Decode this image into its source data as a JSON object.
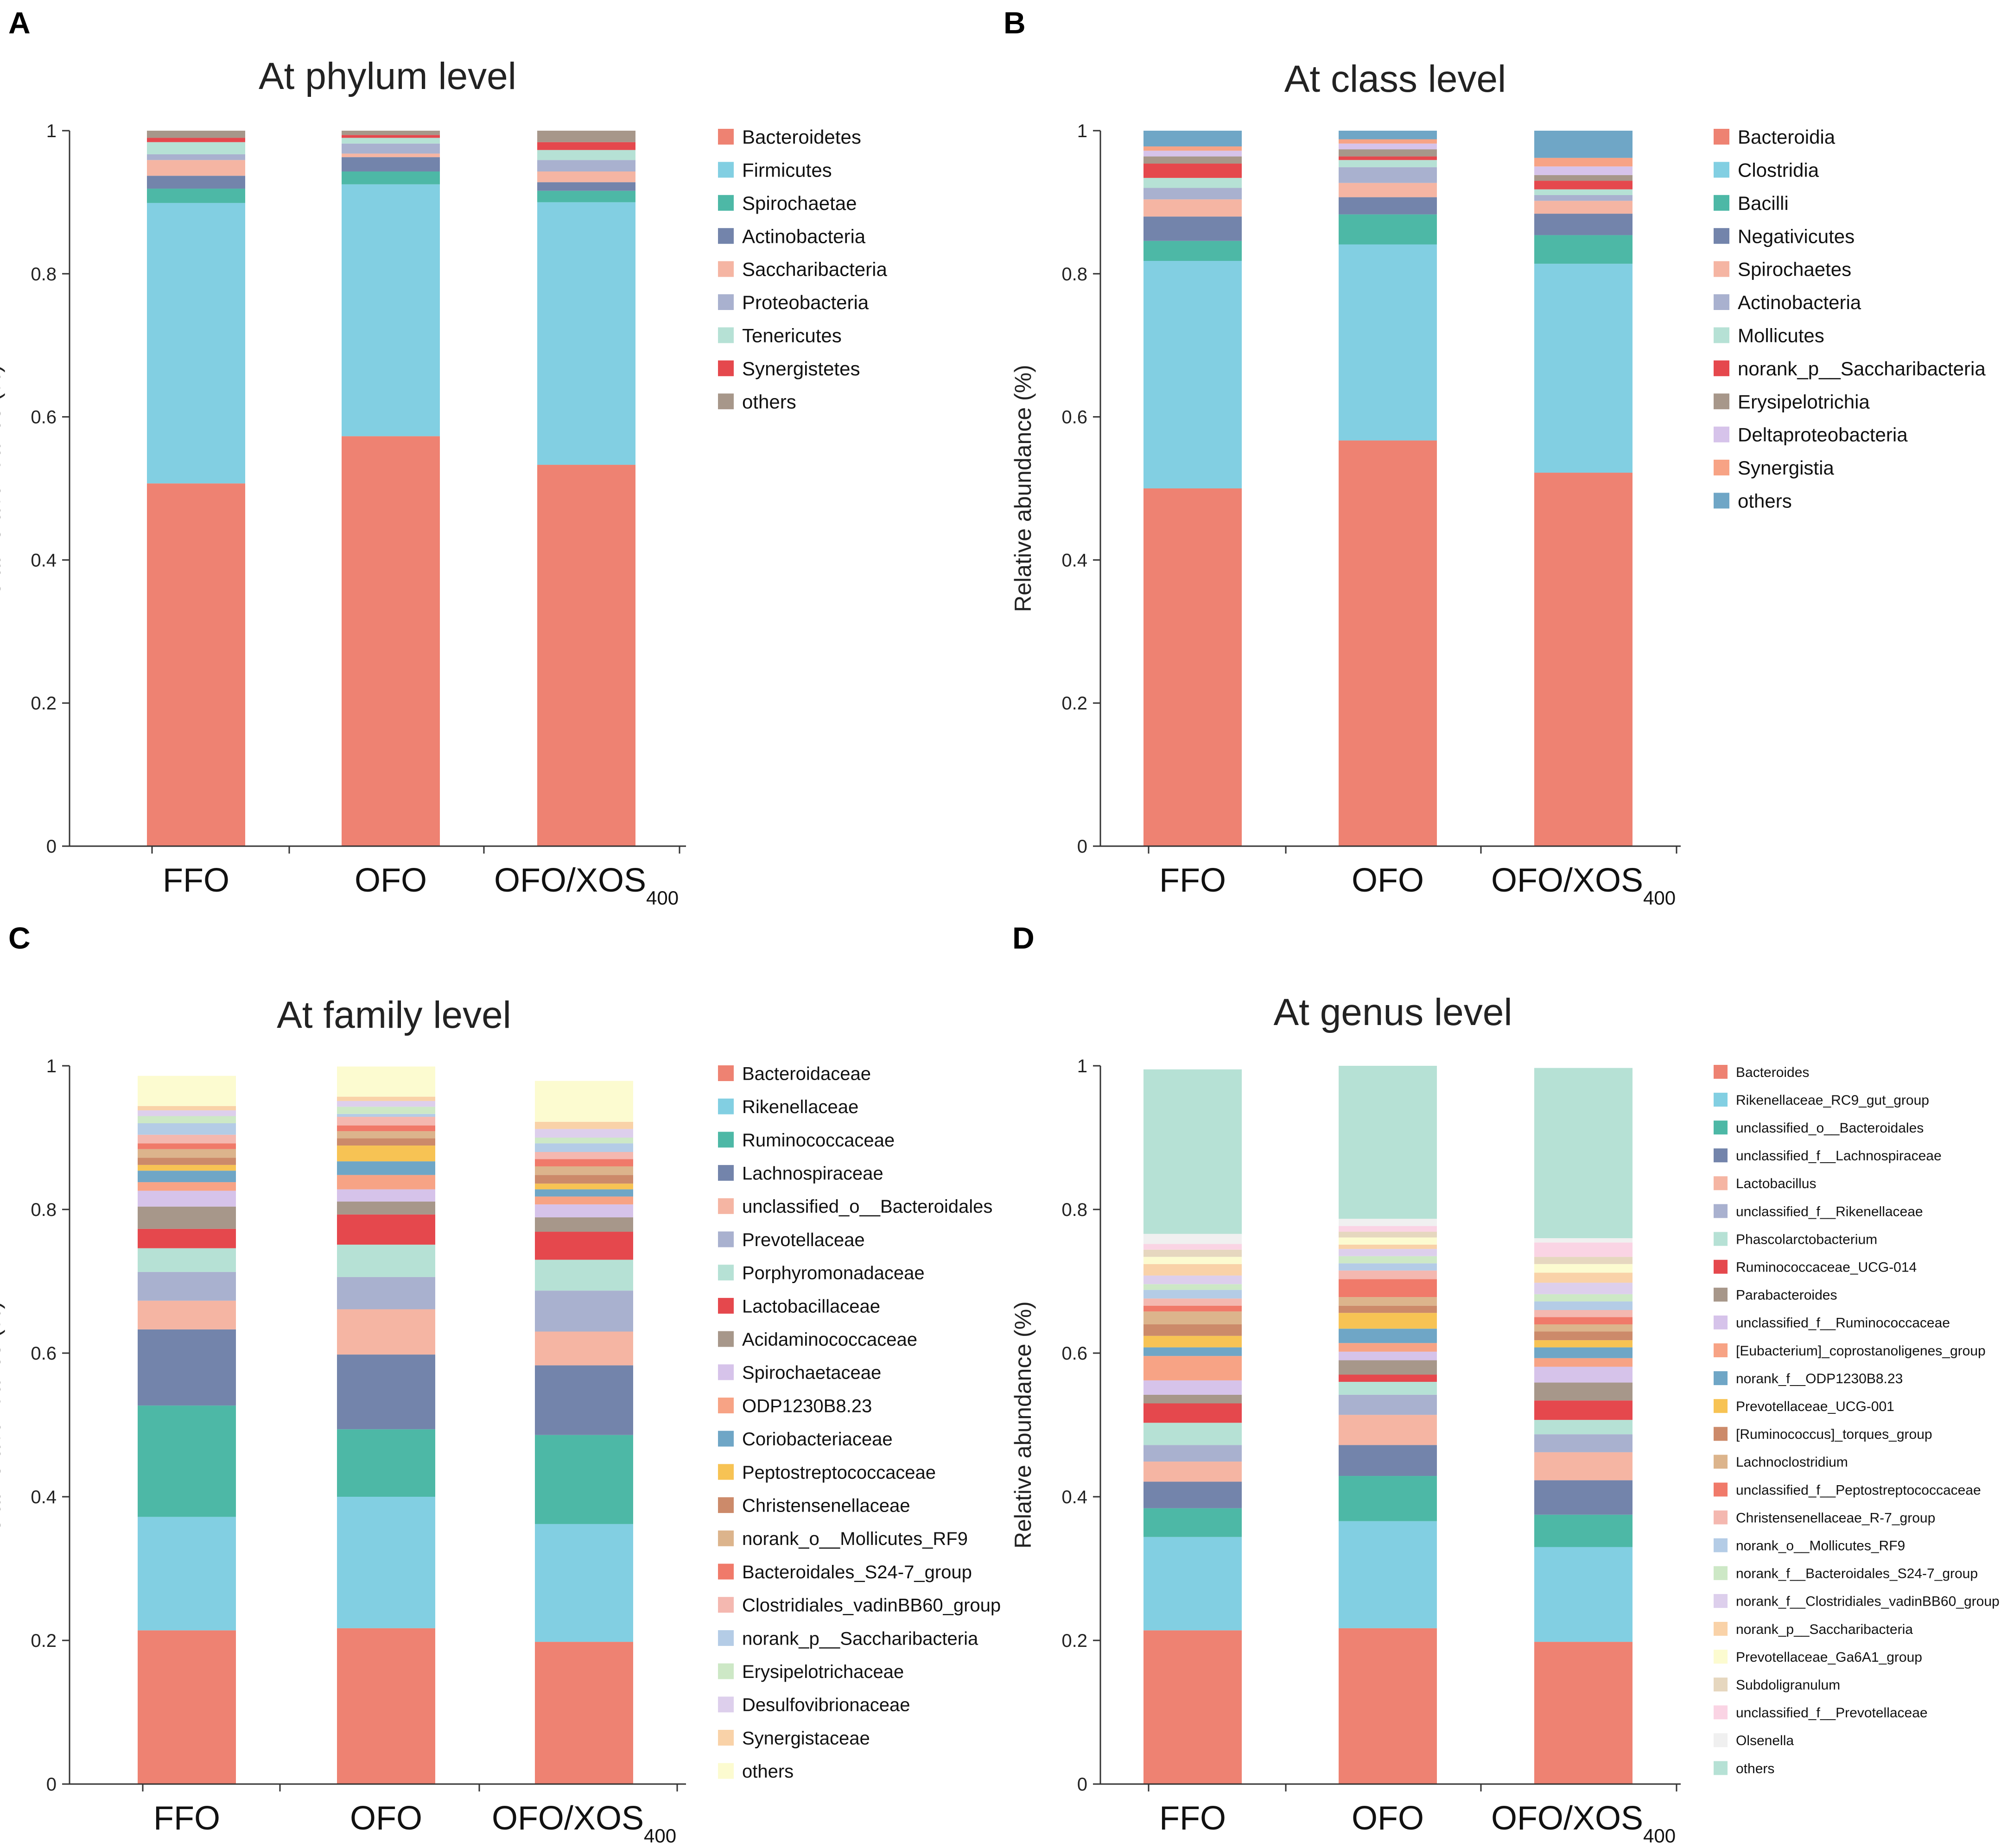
{
  "figure": {
    "panel_letters": [
      "A",
      "B",
      "C",
      "D"
    ]
  },
  "chart_data": [
    {
      "panel": "A",
      "type": "bar",
      "stacked": true,
      "title": "At phylum level",
      "ylabel": "Relative abundance (%)",
      "xlabel": "",
      "ylim": [
        0,
        1
      ],
      "yticks": [
        "0",
        "0.2",
        "0.4",
        "0.6",
        "0.8",
        "1"
      ],
      "categories": [
        {
          "main": "FFO",
          "sub": ""
        },
        {
          "main": "OFO",
          "sub": ""
        },
        {
          "main": "OFO/XOS",
          "sub": "400"
        }
      ],
      "legend_position": "right",
      "series": [
        {
          "name": "Bacteroidetes",
          "color": "#ee8272",
          "values": [
            0.507,
            0.573,
            0.533
          ]
        },
        {
          "name": "Firmicutes",
          "color": "#82cfe2",
          "values": [
            0.392,
            0.352,
            0.367
          ]
        },
        {
          "name": "Spirochaetae",
          "color": "#4db8a6",
          "values": [
            0.02,
            0.018,
            0.016
          ]
        },
        {
          "name": "Actinobacteria",
          "color": "#7384ab",
          "values": [
            0.018,
            0.02,
            0.012
          ]
        },
        {
          "name": "Saccharibacteria",
          "color": "#f5b5a3",
          "values": [
            0.022,
            0.005,
            0.015
          ]
        },
        {
          "name": "Proteobacteria",
          "color": "#a9b1cf",
          "values": [
            0.008,
            0.014,
            0.016
          ]
        },
        {
          "name": "Tenericutes",
          "color": "#b6e1d5",
          "values": [
            0.017,
            0.008,
            0.014
          ]
        },
        {
          "name": "Synergistetes",
          "color": "#e5484d",
          "values": [
            0.006,
            0.004,
            0.011
          ]
        },
        {
          "name": "others",
          "color": "#a7978a",
          "values": [
            0.01,
            0.006,
            0.016
          ]
        }
      ]
    },
    {
      "panel": "B",
      "type": "bar",
      "stacked": true,
      "title": "At class level",
      "ylabel": "Relative abundance (%)",
      "xlabel": "",
      "ylim": [
        0,
        1
      ],
      "yticks": [
        "0",
        "0.2",
        "0.4",
        "0.6",
        "0.8",
        "1"
      ],
      "categories": [
        {
          "main": "FFO",
          "sub": ""
        },
        {
          "main": "OFO",
          "sub": ""
        },
        {
          "main": "OFO/XOS",
          "sub": "400"
        }
      ],
      "legend_position": "right",
      "series": [
        {
          "name": "Bacteroidia",
          "color": "#ee8272",
          "values": [
            0.5,
            0.567,
            0.522
          ]
        },
        {
          "name": "Clostridia",
          "color": "#82cfe2",
          "values": [
            0.318,
            0.274,
            0.292
          ]
        },
        {
          "name": "Bacilli",
          "color": "#4db8a6",
          "values": [
            0.028,
            0.042,
            0.04
          ]
        },
        {
          "name": "Negativicutes",
          "color": "#7384ab",
          "values": [
            0.034,
            0.024,
            0.03
          ]
        },
        {
          "name": "Spirochaetes",
          "color": "#f5b5a3",
          "values": [
            0.024,
            0.02,
            0.018
          ]
        },
        {
          "name": "Actinobacteria",
          "color": "#a9b1cf",
          "values": [
            0.016,
            0.022,
            0.008
          ]
        },
        {
          "name": "Mollicutes",
          "color": "#b6e1d5",
          "values": [
            0.014,
            0.01,
            0.008
          ]
        },
        {
          "name": "norank_p__Saccharibacteria",
          "color": "#e5484d",
          "values": [
            0.02,
            0.005,
            0.012
          ]
        },
        {
          "name": "Erysipelotrichia",
          "color": "#a7978a",
          "values": [
            0.01,
            0.01,
            0.008
          ]
        },
        {
          "name": "Deltaproteobacteria",
          "color": "#d6c3ea",
          "values": [
            0.008,
            0.008,
            0.012
          ]
        },
        {
          "name": "Synergistia",
          "color": "#f7a385",
          "values": [
            0.006,
            0.006,
            0.012
          ]
        },
        {
          "name": "others",
          "color": "#6fa6c6",
          "values": [
            0.022,
            0.012,
            0.038
          ]
        }
      ]
    },
    {
      "panel": "C",
      "type": "bar",
      "stacked": true,
      "title": "At family level",
      "ylabel": "Relative abundance (%)",
      "xlabel": "",
      "ylim": [
        0,
        1
      ],
      "yticks": [
        "0",
        "0.2",
        "0.4",
        "0.6",
        "0.8",
        "1"
      ],
      "categories": [
        {
          "main": "FFO",
          "sub": ""
        },
        {
          "main": "OFO",
          "sub": ""
        },
        {
          "main": "OFO/XOS",
          "sub": "400"
        }
      ],
      "legend_position": "right",
      "series": [
        {
          "name": "Bacteroidaceae",
          "color": "#ee8272",
          "values": [
            0.214,
            0.217,
            0.198
          ]
        },
        {
          "name": "Rikenellaceae",
          "color": "#82cfe2",
          "values": [
            0.158,
            0.183,
            0.164
          ]
        },
        {
          "name": "Ruminococcaceae",
          "color": "#4db8a6",
          "values": [
            0.155,
            0.094,
            0.124
          ]
        },
        {
          "name": "Lachnospiraceae",
          "color": "#7384ab",
          "values": [
            0.106,
            0.104,
            0.097
          ]
        },
        {
          "name": "unclassified_o__Bacteroidales",
          "color": "#f5b5a3",
          "values": [
            0.04,
            0.063,
            0.047
          ]
        },
        {
          "name": "Prevotellaceae",
          "color": "#a9b1cf",
          "values": [
            0.04,
            0.045,
            0.057
          ]
        },
        {
          "name": "Porphyromonadaceae",
          "color": "#b6e1d5",
          "values": [
            0.033,
            0.045,
            0.043
          ]
        },
        {
          "name": "Lactobacillaceae",
          "color": "#e5484d",
          "values": [
            0.027,
            0.042,
            0.039
          ]
        },
        {
          "name": "Acidaminococcaceae",
          "color": "#a7978a",
          "values": [
            0.031,
            0.018,
            0.02
          ]
        },
        {
          "name": "Spirochaetaceae",
          "color": "#d6c3ea",
          "values": [
            0.022,
            0.017,
            0.018
          ]
        },
        {
          "name": "ODP1230B8.23",
          "color": "#f7a385",
          "values": [
            0.012,
            0.02,
            0.011
          ]
        },
        {
          "name": "Coriobacteriaceae",
          "color": "#6fa6c6",
          "values": [
            0.016,
            0.019,
            0.01
          ]
        },
        {
          "name": "Peptostreptococcaceae",
          "color": "#f7c354",
          "values": [
            0.008,
            0.022,
            0.008
          ]
        },
        {
          "name": "Christensenellaceae",
          "color": "#cc8a6a",
          "values": [
            0.01,
            0.01,
            0.012
          ]
        },
        {
          "name": "norank_o__Mollicutes_RF9",
          "color": "#dcb48c",
          "values": [
            0.012,
            0.01,
            0.012
          ]
        },
        {
          "name": "Bacteroidales_S24-7_group",
          "color": "#f07a6a",
          "values": [
            0.008,
            0.008,
            0.01
          ]
        },
        {
          "name": "Clostridiales_vadinBB60_group",
          "color": "#f4b8b0",
          "values": [
            0.012,
            0.012,
            0.01
          ]
        },
        {
          "name": "norank_p__Saccharibacteria",
          "color": "#b4cce6",
          "values": [
            0.016,
            0.004,
            0.012
          ]
        },
        {
          "name": "Erysipelotrichaceae",
          "color": "#cde8c6",
          "values": [
            0.01,
            0.01,
            0.008
          ]
        },
        {
          "name": "Desulfovibrionaceae",
          "color": "#ddcfec",
          "values": [
            0.008,
            0.008,
            0.012
          ]
        },
        {
          "name": "Synergistaceae",
          "color": "#f9d2a8",
          "values": [
            0.006,
            0.006,
            0.01
          ]
        },
        {
          "name": "others",
          "color": "#fcfbd0",
          "values": [
            0.042,
            0.042,
            0.057
          ]
        }
      ]
    },
    {
      "panel": "D",
      "type": "bar",
      "stacked": true,
      "title": "At genus level",
      "ylabel": "Relative abundance (%)",
      "xlabel": "",
      "ylim": [
        0,
        1
      ],
      "yticks": [
        "0",
        "0.2",
        "0.4",
        "0.6",
        "0.8",
        "1"
      ],
      "categories": [
        {
          "main": "FFO",
          "sub": ""
        },
        {
          "main": "OFO",
          "sub": ""
        },
        {
          "main": "OFO/XOS",
          "sub": "400"
        }
      ],
      "legend_position": "right",
      "series": [
        {
          "name": "Bacteroides",
          "color": "#ee8272",
          "values": [
            0.214,
            0.217,
            0.198
          ]
        },
        {
          "name": "Rikenellaceae_RC9_gut_group",
          "color": "#82cfe2",
          "values": [
            0.13,
            0.149,
            0.132
          ]
        },
        {
          "name": "unclassified_o__Bacteroidales",
          "color": "#4db8a6",
          "values": [
            0.04,
            0.063,
            0.045
          ]
        },
        {
          "name": "unclassified_f__Lachnospiraceae",
          "color": "#7384ab",
          "values": [
            0.037,
            0.043,
            0.048
          ]
        },
        {
          "name": "Lactobacillus",
          "color": "#f5b5a3",
          "values": [
            0.028,
            0.042,
            0.039
          ]
        },
        {
          "name": "unclassified_f__Rikenellaceae",
          "color": "#a9b1cf",
          "values": [
            0.023,
            0.028,
            0.025
          ]
        },
        {
          "name": "Phascolarctobacterium",
          "color": "#b6e1d5",
          "values": [
            0.031,
            0.018,
            0.02
          ]
        },
        {
          "name": "Ruminococcaceae_UCG-014",
          "color": "#e5484d",
          "values": [
            0.027,
            0.01,
            0.027
          ]
        },
        {
          "name": "Parabacteroides",
          "color": "#a7978a",
          "values": [
            0.012,
            0.02,
            0.025
          ]
        },
        {
          "name": "unclassified_f__Ruminococcaceae",
          "color": "#d6c3ea",
          "values": [
            0.02,
            0.012,
            0.022
          ]
        },
        {
          "name": "[Eubacterium]_coprostanoligenes_group",
          "color": "#f7a385",
          "values": [
            0.034,
            0.012,
            0.012
          ]
        },
        {
          "name": "norank_f__ODP1230B8.23",
          "color": "#6fa6c6",
          "values": [
            0.012,
            0.02,
            0.015
          ]
        },
        {
          "name": "Prevotellaceae_UCG-001",
          "color": "#f7c354",
          "values": [
            0.016,
            0.022,
            0.01
          ]
        },
        {
          "name": "[Ruminococcus]_torques_group",
          "color": "#cc8a6a",
          "values": [
            0.016,
            0.01,
            0.012
          ]
        },
        {
          "name": "Lachnoclostridium",
          "color": "#dcb48c",
          "values": [
            0.018,
            0.012,
            0.01
          ]
        },
        {
          "name": "unclassified_f__Peptostreptococcaceae",
          "color": "#f07a6a",
          "values": [
            0.008,
            0.025,
            0.01
          ]
        },
        {
          "name": "Christensenellaceae_R-7_group",
          "color": "#f4b8b0",
          "values": [
            0.01,
            0.012,
            0.01
          ]
        },
        {
          "name": "norank_o__Mollicutes_RF9",
          "color": "#b4cce6",
          "values": [
            0.012,
            0.01,
            0.012
          ]
        },
        {
          "name": "norank_f__Bacteroidales_S24-7_group",
          "color": "#cde8c6",
          "values": [
            0.008,
            0.01,
            0.01
          ]
        },
        {
          "name": "norank_f__Clostridiales_vadinBB60_group",
          "color": "#ddcfec",
          "values": [
            0.012,
            0.01,
            0.016
          ]
        },
        {
          "name": "norank_p__Saccharibacteria",
          "color": "#f9d2a8",
          "values": [
            0.016,
            0.006,
            0.014
          ]
        },
        {
          "name": "Prevotellaceae_Ga6A1_group",
          "color": "#fcfbd0",
          "values": [
            0.01,
            0.01,
            0.012
          ]
        },
        {
          "name": "Subdoligranulum",
          "color": "#e6d7bf",
          "values": [
            0.01,
            0.008,
            0.01
          ]
        },
        {
          "name": "unclassified_f__Prevotellaceae",
          "color": "#fad4e4",
          "values": [
            0.008,
            0.008,
            0.02
          ]
        },
        {
          "name": "Olsenella",
          "color": "#f0f0f0",
          "values": [
            0.014,
            0.01,
            0.006
          ]
        },
        {
          "name": "others",
          "color": "#b6e1d5",
          "values": [
            0.229,
            0.213,
            0.237
          ]
        }
      ]
    }
  ]
}
